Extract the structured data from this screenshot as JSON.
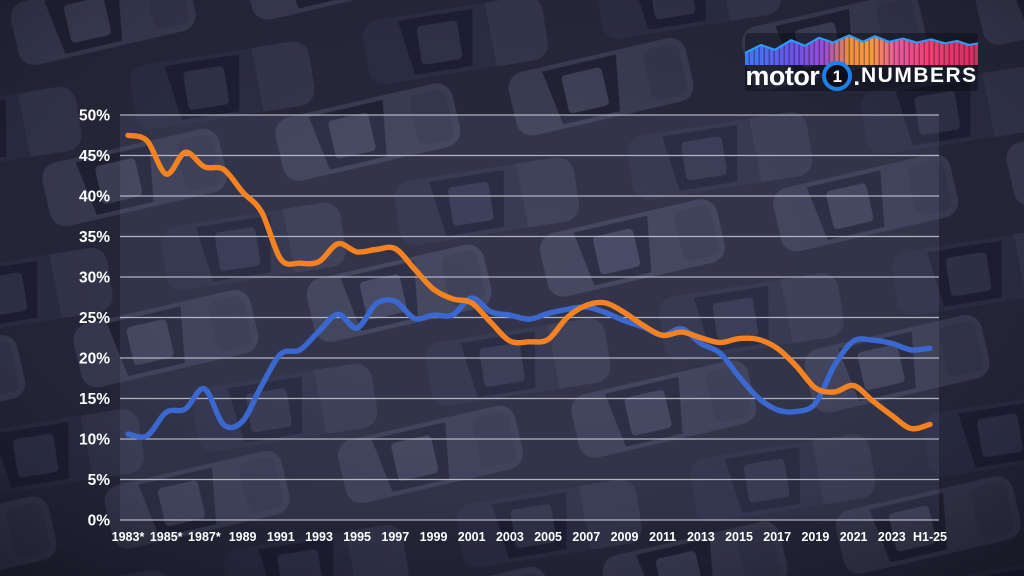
{
  "logo": {
    "word1": "motor",
    "digit": "1",
    "dot": ".",
    "word2": "NUMBERS"
  },
  "colors": {
    "orange_line": "#F58220",
    "blue_line": "#3B68CE",
    "gridline": "#C8CAD4",
    "axis_label": "#FFFFFF",
    "logo_ring": "#1E7FE6",
    "logo_outline": "#2E9BF7",
    "background": "#25263A"
  },
  "chart_data": {
    "type": "line",
    "title": "",
    "xlabel": "",
    "ylabel": "",
    "ylim": [
      0,
      50
    ],
    "grid": true,
    "legend": false,
    "y_ticks": [
      "0%",
      "5%",
      "10%",
      "15%",
      "20%",
      "25%",
      "30%",
      "35%",
      "40%",
      "45%",
      "50%"
    ],
    "x_tick_labels": [
      "1983*",
      "1985*",
      "1987*",
      "1989",
      "1991",
      "1993",
      "1995",
      "1997",
      "1999",
      "2001",
      "2003",
      "2005",
      "2007",
      "2009",
      "2011",
      "2013",
      "2015",
      "2017",
      "2019",
      "2021",
      "2023",
      "H1-25"
    ],
    "x": [
      "1983*",
      "1984",
      "1985*",
      "1986",
      "1987*",
      "1988",
      "1989",
      "1990",
      "1991",
      "1992",
      "1993",
      "1994",
      "1995",
      "1996",
      "1997",
      "1998",
      "1999",
      "2000",
      "2001",
      "2002",
      "2003",
      "2004",
      "2005",
      "2006",
      "2007",
      "2008",
      "2009",
      "2010",
      "2011",
      "2012",
      "2013",
      "2014",
      "2015",
      "2016",
      "2017",
      "2018",
      "2019",
      "2020",
      "2021",
      "2022",
      "2023",
      "2024",
      "H1-25"
    ],
    "series": [
      {
        "name": "orange",
        "color": "#F58220",
        "values": [
          47.5,
          46.8,
          42.7,
          45.4,
          43.6,
          43.3,
          40.5,
          38.0,
          32.2,
          31.7,
          31.9,
          34.1,
          33.1,
          33.4,
          33.5,
          31.0,
          28.5,
          27.3,
          26.8,
          24.4,
          22.1,
          22.0,
          22.3,
          25.0,
          26.5,
          26.8,
          25.6,
          24.0,
          22.8,
          23.2,
          22.5,
          21.9,
          22.4,
          22.3,
          21.2,
          19.0,
          16.3,
          15.8,
          16.6,
          14.7,
          12.9,
          11.3,
          11.8
        ]
      },
      {
        "name": "blue",
        "color": "#3B68CE",
        "values": [
          10.6,
          10.4,
          13.3,
          13.7,
          16.2,
          11.8,
          12.2,
          16.6,
          20.5,
          21.0,
          23.3,
          25.4,
          23.7,
          26.7,
          27.0,
          24.9,
          25.3,
          25.3,
          27.4,
          25.7,
          25.3,
          24.8,
          25.5,
          26.0,
          26.3,
          25.6,
          24.6,
          23.8,
          22.8,
          23.6,
          21.8,
          20.6,
          17.7,
          15.1,
          13.6,
          13.4,
          14.4,
          19.1,
          22.1,
          22.2,
          21.8,
          21.0,
          21.2
        ]
      }
    ]
  }
}
